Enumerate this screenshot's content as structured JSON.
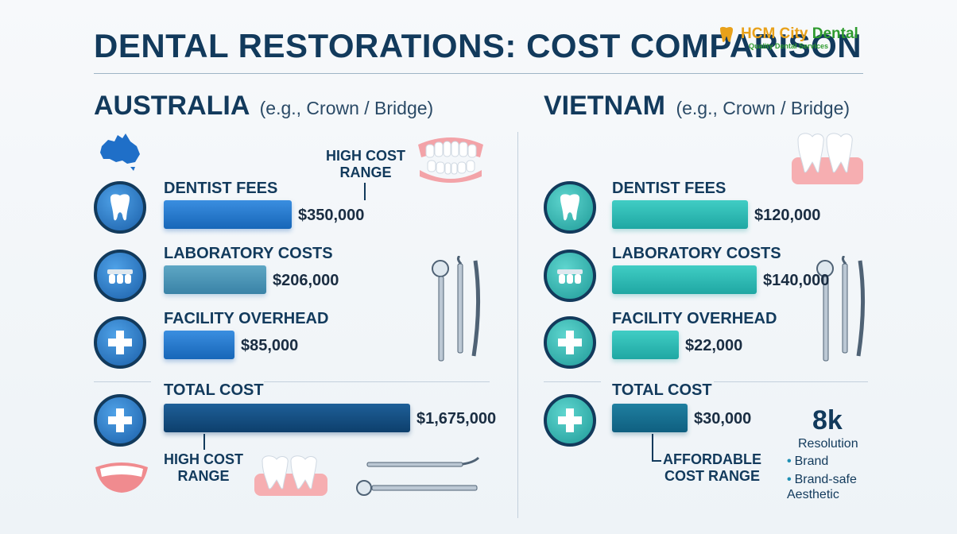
{
  "title": "DENTAL RESTORATIONS: COST COMPARISON",
  "brand": {
    "name_part1": "HCM City ",
    "name_part2": "Dental",
    "tagline": "Quality Dental Services"
  },
  "colors": {
    "australia_bar": "#1f74c8",
    "australia_lab_bar": "#4692b4",
    "australia_total_bar": "#13507f",
    "vietnam_bar": "#2dbdb8",
    "vietnam_total_bar": "#176f92",
    "heading": "#123a5c"
  },
  "chart_data": [
    {
      "type": "bar",
      "orientation": "horizontal",
      "title": "AUSTRALIA",
      "subtitle": "(e.g., Crown / Bridge)",
      "categories": [
        "DENTIST FEES",
        "LABORATORY COSTS",
        "FACILITY OVERHEAD",
        "TOTAL COST"
      ],
      "values": [
        350000,
        206000,
        85000,
        1675000
      ],
      "value_labels": [
        "$350,000",
        "$206,000",
        "$85,000",
        "$1,675,000"
      ],
      "annotations": [
        "HIGH COST RANGE",
        "HIGH COST RANGE"
      ]
    },
    {
      "type": "bar",
      "orientation": "horizontal",
      "title": "VIETNAM",
      "subtitle": "(e.g., Crown / Bridge)",
      "categories": [
        "DENTIST FEES",
        "LABORATORY COSTS",
        "FACILITY OVERHEAD",
        "TOTAL COST"
      ],
      "values": [
        120000,
        140000,
        22000,
        30000
      ],
      "value_labels": [
        "$120,000",
        "$140,000",
        "$22,000",
        "$30,000"
      ],
      "annotations": [
        "AFFORDABLE COST RANGE"
      ]
    }
  ],
  "badge": {
    "big": "8k",
    "line1": "Resolution",
    "bullets": [
      "Brand",
      "Brand-safe Aesthetic"
    ]
  },
  "icons": [
    "australia-map-icon",
    "dentures-icon",
    "tooth-icon",
    "bridge-icon",
    "medical-cross-icon",
    "dental-tools-icon",
    "smile-icon",
    "teeth-icon"
  ]
}
